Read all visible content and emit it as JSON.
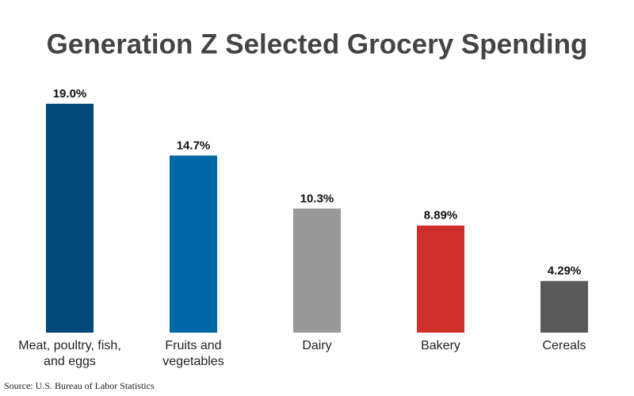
{
  "chart_data": {
    "type": "bar",
    "title": "Generation Z Selected Grocery Spending",
    "categories": [
      "Meat, poultry, fish, and eggs",
      "Fruits and vegetables",
      "Dairy",
      "Bakery",
      "Cereals"
    ],
    "values": [
      19.0,
      14.7,
      10.3,
      8.89,
      4.29
    ],
    "value_labels": [
      "19.0%",
      "14.7%",
      "10.3%",
      "8.89%",
      "4.29%"
    ],
    "colors": [
      "#00477a",
      "#0067a8",
      "#999999",
      "#d0302b",
      "#595959"
    ],
    "source": "Source: U.S. Bureau of Labor Statistics"
  }
}
